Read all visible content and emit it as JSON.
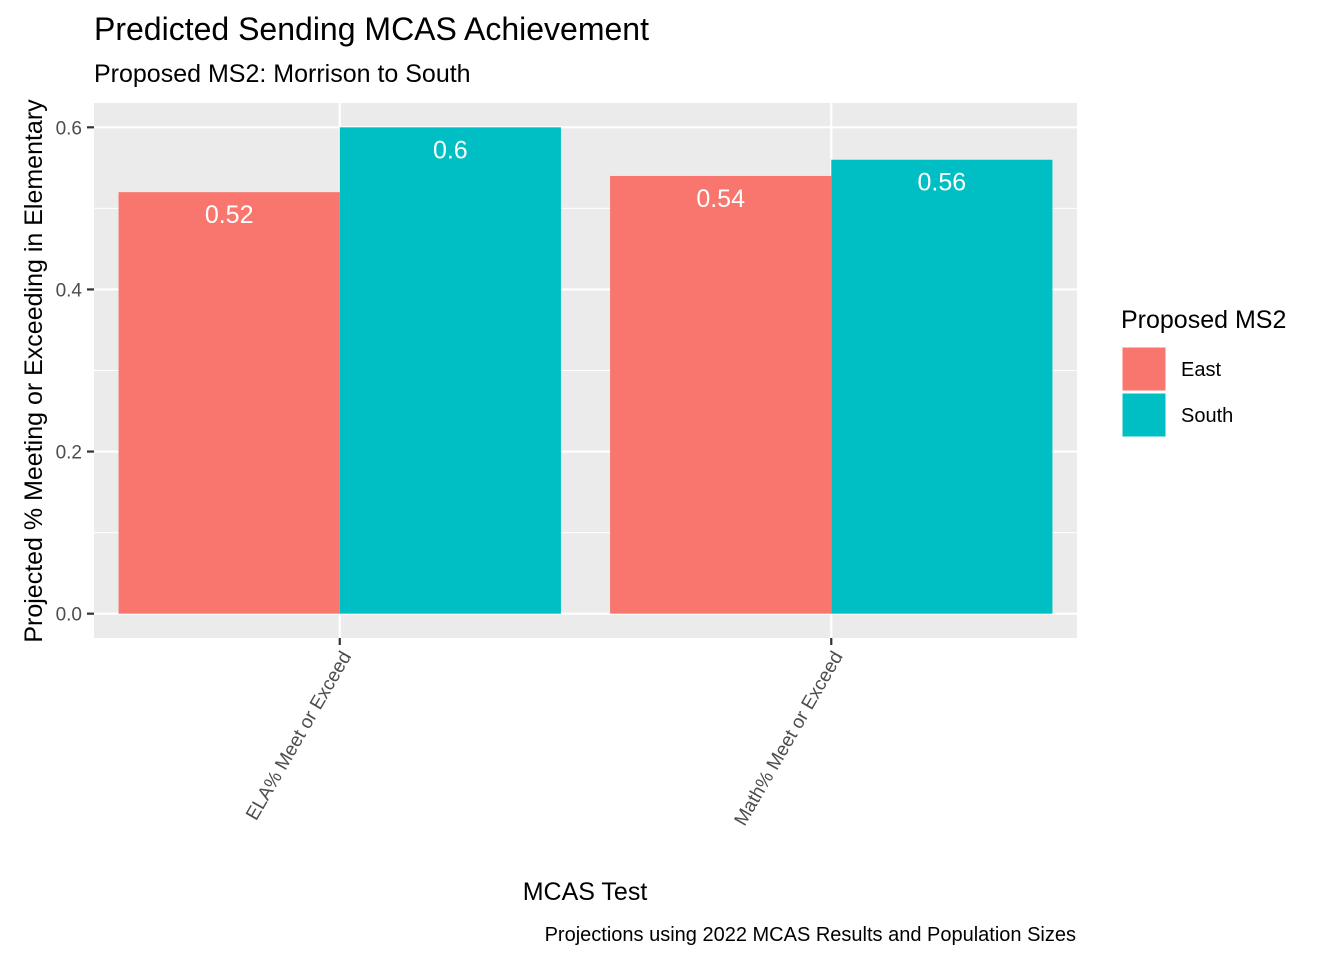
{
  "chart_data": {
    "type": "bar",
    "title": "Predicted Sending MCAS Achievement",
    "subtitle": "Proposed MS2: Morrison to South",
    "xlabel": "MCAS Test",
    "ylabel": "Projected % Meeting or Exceeding in Elementary",
    "caption": "Projections using 2022 MCAS Results and Population Sizes",
    "categories": [
      "ELA% Meet or Exceed",
      "Math% Meet or Exceed"
    ],
    "series": [
      {
        "name": "East",
        "color": "#F8766D",
        "values": [
          0.52,
          0.54
        ],
        "labels": [
          "0.52",
          "0.54"
        ]
      },
      {
        "name": "South",
        "color": "#00BFC4",
        "values": [
          0.6,
          0.56
        ],
        "labels": [
          "0.6",
          "0.56"
        ]
      }
    ],
    "ylim": [
      -0.03,
      0.63
    ],
    "yticks": [
      0.0,
      0.2,
      0.4,
      0.6
    ],
    "ytick_labels": [
      "0.0",
      "0.2",
      "0.4",
      "0.6"
    ],
    "legend": {
      "title": "Proposed MS2",
      "position": "right"
    },
    "grid": true,
    "panel_background": "#EBEBEB"
  }
}
